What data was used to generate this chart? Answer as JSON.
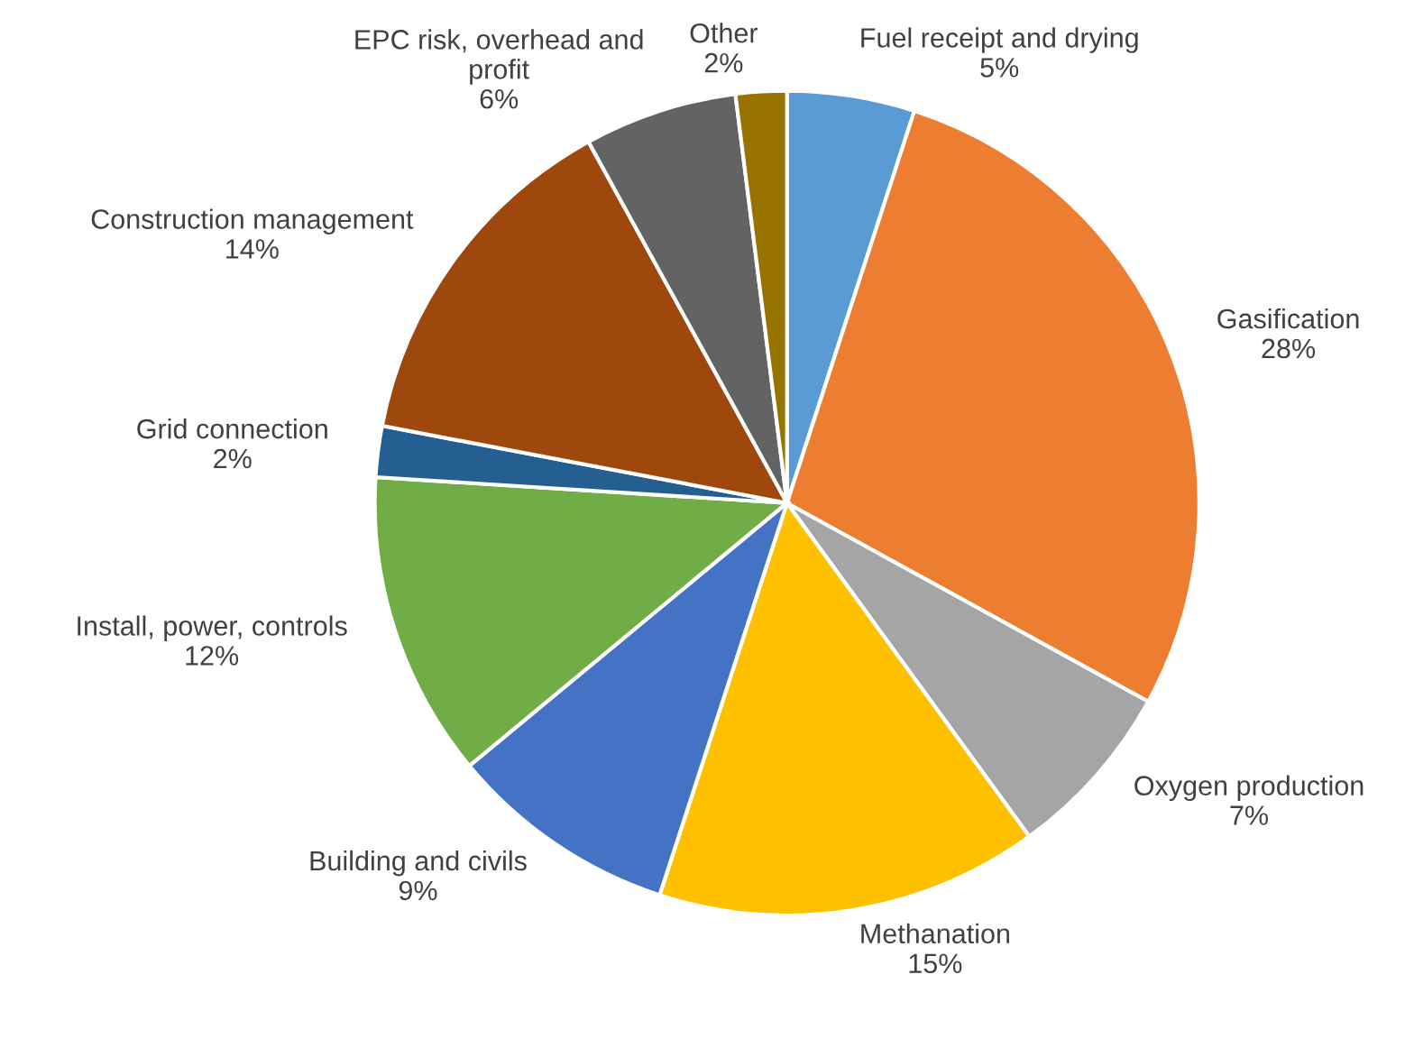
{
  "chart_data": {
    "type": "pie",
    "categories": [
      "Fuel receipt and drying",
      "Gasification",
      "Oxygen production",
      "Methanation",
      "Building and civils",
      "Install, power, controls",
      "Grid connection",
      "Construction management",
      "EPC risk, overhead and profit",
      "Other"
    ],
    "values": [
      5,
      28,
      7,
      15,
      9,
      12,
      2,
      14,
      6,
      2
    ],
    "value_labels": [
      "5%",
      "28%",
      "7%",
      "15%",
      "9%",
      "12%",
      "2%",
      "14%",
      "6%",
      "2%"
    ],
    "colors": [
      "#5b9bd5",
      "#ed7d31",
      "#a5a5a5",
      "#ffc000",
      "#4472c4",
      "#70ad47",
      "#255e91",
      "#9e480e",
      "#636363",
      "#997300"
    ],
    "legend": false
  }
}
